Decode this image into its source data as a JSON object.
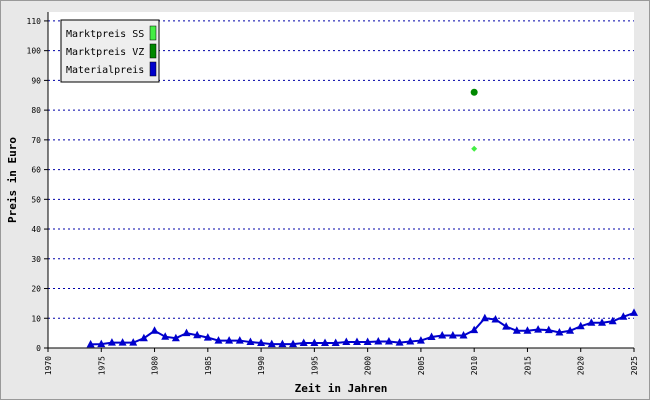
{
  "chart_data": {
    "type": "line",
    "x_label": "Zeit in Jahren",
    "y_label": "Preis in Euro",
    "xlim": [
      1970,
      2025
    ],
    "xticks": [
      1970,
      1975,
      1980,
      1985,
      1990,
      1995,
      2000,
      2005,
      2010,
      2015,
      2020,
      2025
    ],
    "ylim": [
      0,
      113
    ],
    "yticks": [
      0,
      10,
      20,
      30,
      40,
      50,
      60,
      70,
      80,
      90,
      100,
      110
    ],
    "grid": true,
    "legend": "upper left",
    "series": [
      {
        "name": "Marktpreis SS",
        "color": "#44ee44",
        "marker": "diamond",
        "x": [
          2010
        ],
        "values": [
          67
        ]
      },
      {
        "name": "Marktpreis VZ",
        "color": "#008800",
        "marker": "circle",
        "x": [
          2010
        ],
        "values": [
          86
        ]
      },
      {
        "name": "Materialpreis",
        "color": "#0000cc",
        "marker": "triangle",
        "x": [
          1974,
          1975,
          1976,
          1977,
          1978,
          1979,
          1980,
          1981,
          1982,
          1983,
          1984,
          1985,
          1986,
          1987,
          1988,
          1989,
          1990,
          1991,
          1992,
          1993,
          1994,
          1995,
          1996,
          1997,
          1998,
          1999,
          2000,
          2001,
          2002,
          2003,
          2004,
          2005,
          2006,
          2007,
          2008,
          2009,
          2010,
          2011,
          2012,
          2013,
          2014,
          2015,
          2016,
          2017,
          2018,
          2019,
          2020,
          2021,
          2022,
          2023,
          2024,
          2025
        ],
        "values": [
          1.2,
          1.3,
          1.8,
          1.8,
          1.8,
          3.3,
          5.8,
          3.8,
          3.3,
          5,
          4.3,
          3.5,
          2.5,
          2.5,
          2.5,
          2,
          1.7,
          1.3,
          1.3,
          1.3,
          1.7,
          1.7,
          1.7,
          1.7,
          2,
          2,
          2,
          2.2,
          2.2,
          1.8,
          2.2,
          2.5,
          3.7,
          4.2,
          4.2,
          4.2,
          6,
          10,
          9.6,
          7.2,
          5.8,
          5.8,
          6.2,
          6,
          5.2,
          5.8,
          7.3,
          8.5,
          8.5,
          9,
          10.5,
          11.8
        ]
      }
    ]
  }
}
